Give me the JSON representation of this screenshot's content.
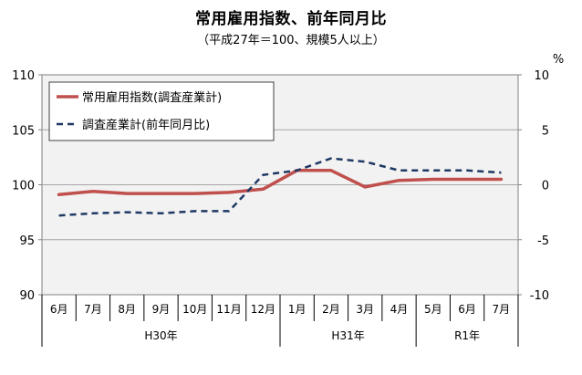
{
  "chart_data": {
    "type": "line",
    "title": "常用雇用指数、前年同月比",
    "subtitle": "（平成27年＝100、規模5人以上）",
    "categories": [
      "6月",
      "7月",
      "8月",
      "9月",
      "10月",
      "11月",
      "12月",
      "1月",
      "2月",
      "3月",
      "4月",
      "5月",
      "6月",
      "7月"
    ],
    "year_groups": [
      {
        "label": "H30年",
        "start": 0,
        "end": 6
      },
      {
        "label": "H31年",
        "start": 7,
        "end": 10
      },
      {
        "label": "R1年",
        "start": 11,
        "end": 13
      }
    ],
    "y_left": {
      "min": 90,
      "max": 110,
      "step": 5,
      "ticks": [
        "90",
        "95",
        "100",
        "105",
        "110"
      ]
    },
    "y_right": {
      "min": -10,
      "max": 10,
      "step": 5,
      "ticks": [
        "-10",
        "-5",
        "0",
        "5",
        "10"
      ],
      "unit": "%"
    },
    "grid": true,
    "legend_position": "top-left",
    "series": [
      {
        "name": "常用雇用指数(調査産業計)",
        "axis": "left",
        "style": "solid",
        "color": "#c0504d",
        "values": [
          99.1,
          99.4,
          99.2,
          99.2,
          99.2,
          99.3,
          99.6,
          101.3,
          101.3,
          99.8,
          100.4,
          100.5,
          100.5,
          100.5
        ]
      },
      {
        "name": "調査産業計(前年同月比)",
        "axis": "right",
        "style": "dashed",
        "color": "#1f3864",
        "values": [
          -2.8,
          -2.6,
          -2.5,
          -2.6,
          -2.4,
          -2.4,
          0.9,
          1.3,
          2.4,
          2.1,
          1.3,
          1.3,
          1.3,
          1.1
        ]
      }
    ]
  }
}
